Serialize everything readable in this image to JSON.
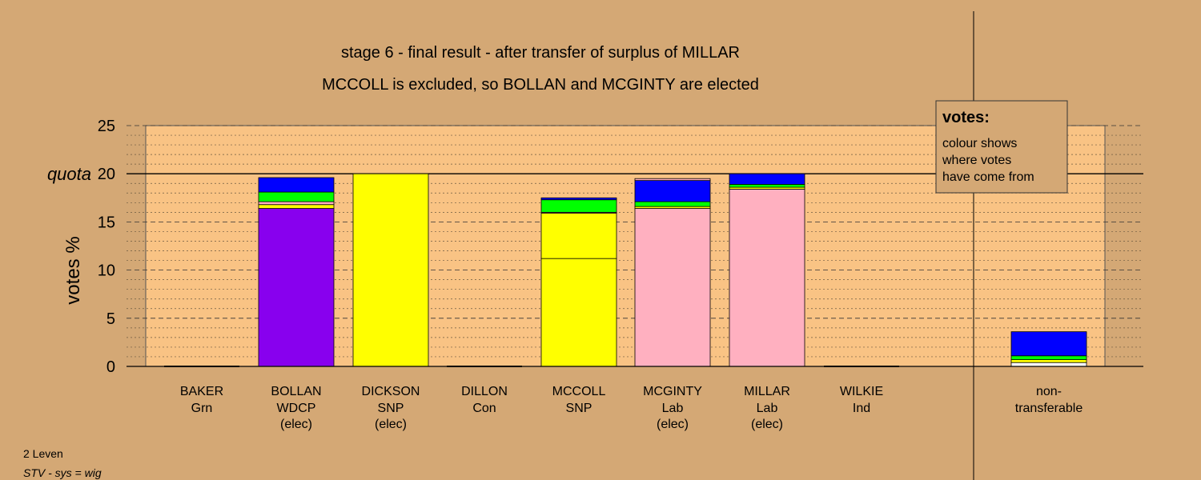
{
  "chart_data": {
    "type": "bar",
    "stacked": true,
    "title": "stage 6 - final result - after transfer of surplus of MILLAR",
    "subtitle": "MCCOLL is excluded, so BOLLAN and MCGINTY are elected",
    "ylabel": "votes %",
    "ylim": [
      0,
      25
    ],
    "yticks": [
      0,
      5,
      10,
      15,
      20,
      25
    ],
    "quota": {
      "label": "quota",
      "value": 20
    },
    "grid": "dashed",
    "candidates": [
      {
        "name": "BAKER",
        "party": "Grn",
        "status": "",
        "segments": []
      },
      {
        "name": "BOLLAN",
        "party": "WDCP",
        "status": "(elec)",
        "segments": [
          {
            "color": "#8800ee",
            "value": 16.4
          },
          {
            "color": "#ffff00",
            "value": 0.4
          },
          {
            "color": "#ffb0c0",
            "value": 0.3
          },
          {
            "color": "#00ff00",
            "value": 1.0
          },
          {
            "color": "#0000ff",
            "value": 1.5
          }
        ]
      },
      {
        "name": "DICKSON",
        "party": "SNP",
        "status": "(elec)",
        "segments": [
          {
            "color": "#ffff00",
            "value": 20.0
          }
        ]
      },
      {
        "name": "DILLON",
        "party": "Con",
        "status": "",
        "segments": []
      },
      {
        "name": "MCCOLL",
        "party": "SNP",
        "status": "",
        "segments": [
          {
            "color": "#ffff00",
            "value": 11.2
          },
          {
            "color": "#ffff00",
            "value": 4.7
          },
          {
            "color": "#ffb0c0",
            "value": 0.1
          },
          {
            "color": "#00ff00",
            "value": 1.3
          },
          {
            "color": "#0000ff",
            "value": 0.2
          }
        ]
      },
      {
        "name": "MCGINTY",
        "party": "Lab",
        "status": "(elec)",
        "segments": [
          {
            "color": "#ffb0c0",
            "value": 16.4
          },
          {
            "color": "#ffff00",
            "value": 0.2
          },
          {
            "color": "#00ff00",
            "value": 0.5
          },
          {
            "color": "#0000ff",
            "value": 2.2
          },
          {
            "color": "#ffb0c0",
            "value": 0.2
          }
        ]
      },
      {
        "name": "MILLAR",
        "party": "Lab",
        "status": "(elec)",
        "segments": [
          {
            "color": "#ffb0c0",
            "value": 18.4
          },
          {
            "color": "#ffff00",
            "value": 0.2
          },
          {
            "color": "#00ff00",
            "value": 0.3
          },
          {
            "color": "#0000ff",
            "value": 1.1
          }
        ]
      },
      {
        "name": "WILKIE",
        "party": "Ind",
        "status": "",
        "segments": []
      }
    ],
    "nontransferable": {
      "label_line1": "non-",
      "label_line2": "transferable",
      "segments": [
        {
          "color": "#ffffff",
          "value": 0.4
        },
        {
          "color": "#ffff00",
          "value": 0.3
        },
        {
          "color": "#00ff00",
          "value": 0.4
        },
        {
          "color": "#0000ff",
          "value": 2.5
        }
      ]
    }
  },
  "legend": {
    "title": "votes:",
    "lines": [
      "colour shows",
      "where votes",
      "have come from"
    ]
  },
  "footer": {
    "ward": "2 Leven",
    "system": "STV - sys = wig"
  },
  "colors": {
    "background": "#d4a875",
    "plot_background": "#f9c384"
  }
}
